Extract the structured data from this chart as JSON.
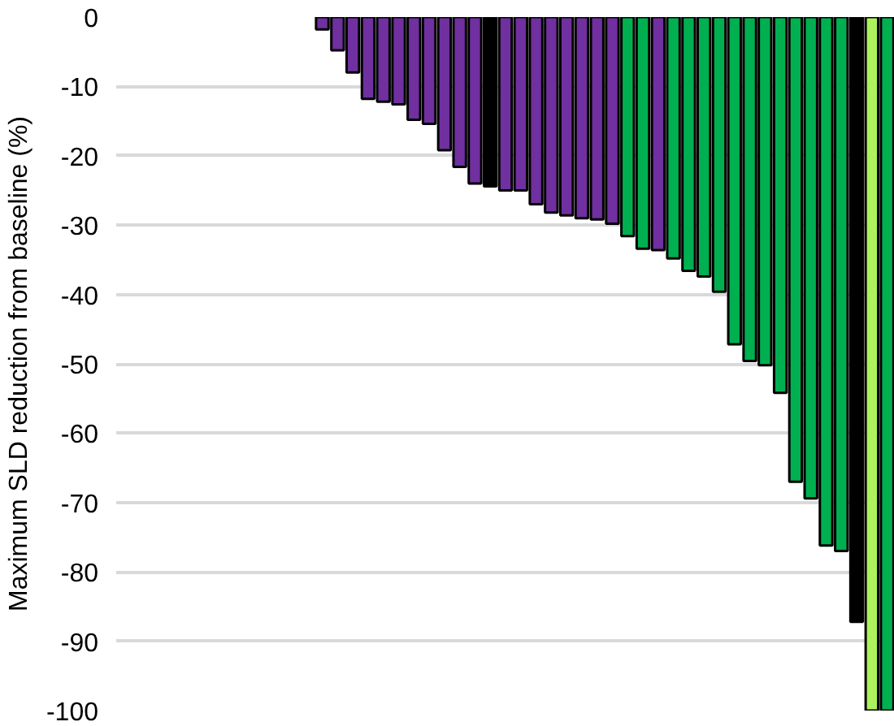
{
  "chart_data": {
    "type": "bar",
    "ylabel": "Maximum SLD reduction from baseline (%)",
    "categories": [
      null,
      null,
      null,
      null,
      null,
      null,
      null,
      null,
      null,
      null,
      null,
      null,
      null,
      null,
      null,
      null,
      null,
      null,
      null,
      null,
      null,
      null,
      null,
      null,
      null,
      null,
      null,
      null,
      null,
      null,
      null,
      null,
      null,
      null,
      null,
      null,
      null,
      null,
      null,
      null,
      null,
      null,
      null,
      null,
      null,
      null,
      null,
      null,
      null,
      null,
      null
    ],
    "values": [
      null,
      null,
      null,
      null,
      null,
      null,
      null,
      null,
      null,
      null,
      null,
      null,
      null,
      -1.8,
      -4.8,
      -8,
      -11.8,
      -12.2,
      -12.6,
      -14.8,
      -15.4,
      -19.2,
      -21.6,
      -24,
      -24.4,
      -25,
      -25,
      -27,
      -28.2,
      -28.6,
      -29,
      -29.2,
      -29.8,
      -31.6,
      -33.4,
      -33.6,
      -34.8,
      -36.6,
      -37.4,
      -39.6,
      -47.2,
      -49.6,
      -50.2,
      -54.2,
      -67,
      -69.4,
      -76.2,
      -77,
      -87.2,
      -100,
      -100
    ],
    "colors": [
      "#7030a0",
      "#7030a0",
      "#7030a0",
      "#7030a0",
      "#7030a0",
      "#7030a0",
      "#7030a0",
      "#7030a0",
      "#7030a0",
      "#7030a0",
      "#7030a0",
      "#7030a0",
      "#7030a0",
      "#7030a0",
      "#7030a0",
      "#7030a0",
      "#7030a0",
      "#7030a0",
      "#7030a0",
      "#7030a0",
      "#7030a0",
      "#7030a0",
      "#7030a0",
      "#7030a0",
      "#000000",
      "#7030a0",
      "#7030a0",
      "#7030a0",
      "#7030a0",
      "#7030a0",
      "#7030a0",
      "#7030a0",
      "#7030a0",
      "#00b050",
      "#00b050",
      "#7030a0",
      "#00b050",
      "#00b050",
      "#00b050",
      "#00b050",
      "#00b050",
      "#00b050",
      "#00b050",
      "#00b050",
      "#00b050",
      "#00b050",
      "#00b050",
      "#00b050",
      "#000000",
      "#adf25c",
      "#00b050"
    ],
    "ylim": [
      -100,
      0
    ],
    "yticks": [
      -100,
      -90,
      -80,
      -70,
      -60,
      -50,
      -40,
      -30,
      -20,
      -10,
      0
    ],
    "grid": "y"
  }
}
